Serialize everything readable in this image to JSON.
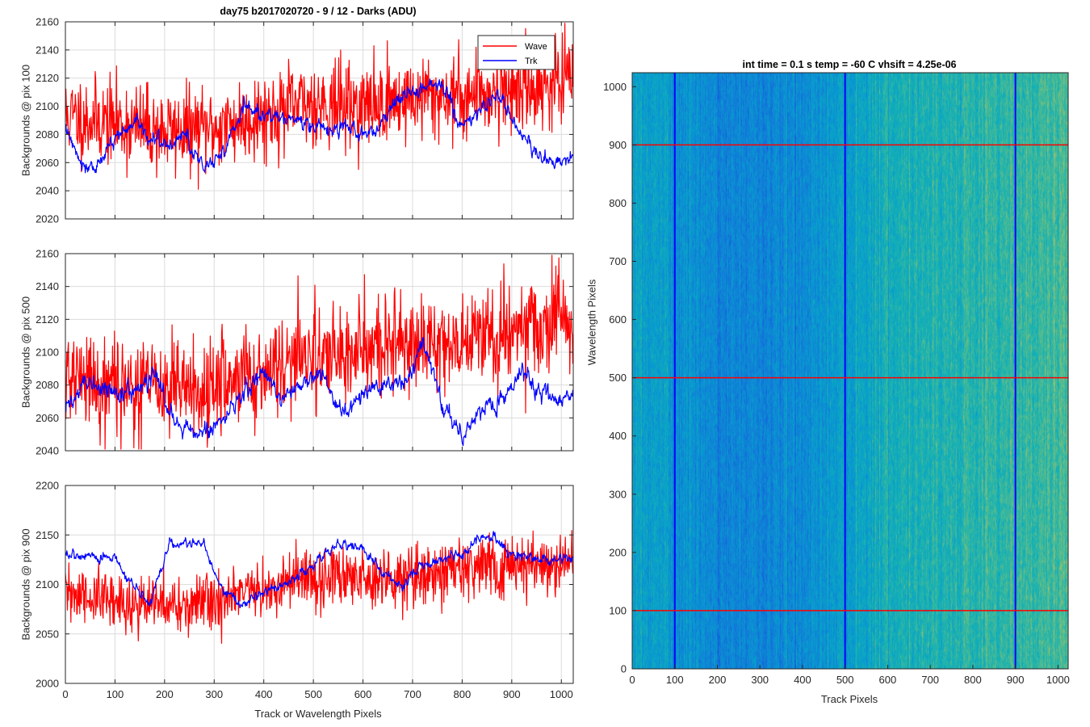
{
  "figure": {
    "title": "day75 b2017020720 - 9 / 12 - Darks (ADU)",
    "xlabel": "Track or Wavelength Pixels"
  },
  "colors": {
    "wave": "#ff0000",
    "trk": "#0000ff",
    "grid": "#dcdcdc",
    "axis": "#262626"
  },
  "chart_data": [
    {
      "type": "line",
      "ylabel": "Backgrounds @ pix 100",
      "xlim": [
        0,
        1024
      ],
      "ylim": [
        2020,
        2160
      ],
      "xticks": [
        0,
        100,
        200,
        300,
        400,
        500,
        600,
        700,
        800,
        900,
        1000
      ],
      "yticks": [
        2020,
        2040,
        2060,
        2080,
        2100,
        2120,
        2140,
        2160
      ],
      "grid": true,
      "legend": {
        "placement": "top-right",
        "entries": [
          "Wave",
          "Trk"
        ]
      },
      "series": [
        {
          "name": "Wave",
          "color": "#ff0000",
          "noise": 15,
          "seed": 11,
          "profile_x": [
            0,
            100,
            200,
            300,
            380,
            500,
            600,
            700,
            800,
            900,
            1024
          ],
          "profile_y": [
            2093,
            2088,
            2082,
            2084,
            2092,
            2103,
            2100,
            2106,
            2108,
            2112,
            2118
          ]
        },
        {
          "name": "Trk",
          "color": "#0000ff",
          "noise": 4,
          "seed": 12,
          "profile_x": [
            0,
            30,
            60,
            100,
            140,
            170,
            210,
            240,
            280,
            320,
            360,
            420,
            470,
            500,
            560,
            620,
            680,
            720,
            760,
            800,
            840,
            880,
            920,
            960,
            1024
          ],
          "profile_y": [
            2085,
            2062,
            2055,
            2078,
            2088,
            2078,
            2072,
            2080,
            2055,
            2070,
            2100,
            2090,
            2092,
            2085,
            2085,
            2080,
            2108,
            2110,
            2118,
            2085,
            2100,
            2105,
            2080,
            2062,
            2062
          ]
        }
      ]
    },
    {
      "type": "line",
      "ylabel": "Backgrounds @ pix 500",
      "xlim": [
        0,
        1024
      ],
      "ylim": [
        2040,
        2160
      ],
      "xticks": [
        0,
        100,
        200,
        300,
        400,
        500,
        600,
        700,
        800,
        900,
        1000
      ],
      "yticks": [
        2040,
        2060,
        2080,
        2100,
        2120,
        2140,
        2160
      ],
      "grid": true,
      "series": [
        {
          "name": "Wave",
          "color": "#ff0000",
          "noise": 15,
          "seed": 21,
          "profile_x": [
            0,
            100,
            200,
            300,
            400,
            500,
            600,
            700,
            800,
            900,
            1024
          ],
          "profile_y": [
            2085,
            2080,
            2078,
            2078,
            2090,
            2100,
            2100,
            2105,
            2108,
            2113,
            2118
          ]
        },
        {
          "name": "Trk",
          "color": "#0000ff",
          "noise": 4,
          "seed": 22,
          "profile_x": [
            0,
            40,
            80,
            130,
            180,
            220,
            260,
            300,
            350,
            400,
            440,
            480,
            520,
            560,
            600,
            640,
            690,
            720,
            760,
            800,
            840,
            880,
            920,
            960,
            1000,
            1024
          ],
          "profile_y": [
            2065,
            2080,
            2078,
            2075,
            2085,
            2060,
            2050,
            2055,
            2070,
            2090,
            2070,
            2080,
            2085,
            2060,
            2075,
            2080,
            2085,
            2105,
            2070,
            2050,
            2065,
            2070,
            2090,
            2075,
            2070,
            2075
          ]
        }
      ]
    },
    {
      "type": "line",
      "ylabel": "Backgrounds @ pix 900",
      "xlim": [
        0,
        1024
      ],
      "ylim": [
        2000,
        2200
      ],
      "xticks": [
        0,
        100,
        200,
        300,
        400,
        500,
        600,
        700,
        800,
        900,
        1000
      ],
      "yticks": [
        2000,
        2050,
        2100,
        2150,
        2200
      ],
      "grid": true,
      "series": [
        {
          "name": "Wave",
          "color": "#ff0000",
          "noise": 15,
          "seed": 31,
          "profile_x": [
            0,
            100,
            200,
            300,
            400,
            500,
            600,
            700,
            800,
            900,
            1024
          ],
          "profile_y": [
            2090,
            2082,
            2078,
            2082,
            2095,
            2105,
            2108,
            2110,
            2115,
            2120,
            2122
          ]
        },
        {
          "name": "Trk",
          "color": "#0000ff",
          "noise": 4,
          "seed": 32,
          "profile_x": [
            0,
            50,
            100,
            150,
            170,
            210,
            240,
            280,
            300,
            330,
            360,
            400,
            440,
            480,
            520,
            560,
            600,
            640,
            680,
            720,
            760,
            800,
            840,
            860,
            900,
            960,
            1024
          ],
          "profile_y": [
            2130,
            2130,
            2125,
            2090,
            2080,
            2140,
            2140,
            2140,
            2110,
            2090,
            2080,
            2090,
            2100,
            2110,
            2130,
            2140,
            2135,
            2110,
            2100,
            2120,
            2125,
            2130,
            2150,
            2150,
            2130,
            2125,
            2125
          ]
        }
      ]
    },
    {
      "type": "heatmap",
      "title": "int time = 0.1 s   temp = -60 C   vhsift = 4.25e-06",
      "xlabel": "Track Pixels",
      "ylabel": "Wavelength Pixels",
      "xlim": [
        0,
        1024
      ],
      "ylim": [
        0,
        1024
      ],
      "xticks": [
        0,
        100,
        200,
        300,
        400,
        500,
        600,
        700,
        800,
        900,
        1000
      ],
      "yticks": [
        0,
        100,
        200,
        300,
        400,
        500,
        600,
        700,
        800,
        900,
        1000
      ],
      "colormap": "parula",
      "intensity_profile_x": [
        0,
        100,
        200,
        300,
        400,
        500,
        600,
        700,
        800,
        900,
        1024
      ],
      "intensity_profile_v": [
        0.52,
        0.42,
        0.34,
        0.34,
        0.38,
        0.48,
        0.58,
        0.62,
        0.62,
        0.66,
        0.7
      ],
      "marker_columns": [
        100,
        500,
        900
      ],
      "marker_rows": [
        100,
        500,
        900
      ],
      "marker_column_color": "#0000ff",
      "marker_row_color": "#ff0000"
    }
  ]
}
